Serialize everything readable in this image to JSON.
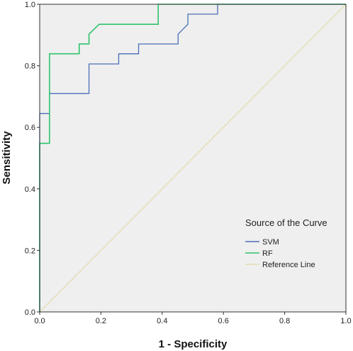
{
  "chart_data": {
    "type": "line",
    "title": "",
    "xlabel": "1 - Specificity",
    "ylabel": "Sensitivity",
    "xlim": [
      0,
      1
    ],
    "ylim": [
      0,
      1
    ],
    "x_ticks": [
      "0.0",
      "0.2",
      "0.4",
      "0.6",
      "0.8",
      "1.0"
    ],
    "y_ticks": [
      "0.0",
      "0.2",
      "0.4",
      "0.6",
      "0.8",
      "1.0"
    ],
    "grid": false,
    "background": "#efefef",
    "legend": {
      "title": "Source of the Curve",
      "position": "bottom-right"
    },
    "series": [
      {
        "name": "SVM",
        "color": "#4a6fb8",
        "x": [
          0,
          0,
          0.032,
          0.032,
          0.161,
          0.161,
          0.258,
          0.258,
          0.323,
          0.323,
          0.452,
          0.452,
          0.484,
          0.484,
          0.581,
          0.581,
          1.0
        ],
        "y": [
          0,
          0.645,
          0.645,
          0.71,
          0.71,
          0.806,
          0.806,
          0.839,
          0.839,
          0.871,
          0.871,
          0.903,
          0.935,
          0.968,
          0.968,
          1.0,
          1.0
        ]
      },
      {
        "name": "RF",
        "color": "#2fc46c",
        "x": [
          0,
          0,
          0.032,
          0.032,
          0.129,
          0.129,
          0.161,
          0.161,
          0.194,
          0.194,
          0.387,
          0.387,
          1.0
        ],
        "y": [
          0,
          0.548,
          0.548,
          0.839,
          0.839,
          0.871,
          0.871,
          0.903,
          0.935,
          0.935,
          0.935,
          1.0,
          1.0
        ]
      },
      {
        "name": "Reference Line",
        "color": "#e3dcae",
        "x": [
          0,
          1
        ],
        "y": [
          0,
          1
        ]
      }
    ]
  }
}
